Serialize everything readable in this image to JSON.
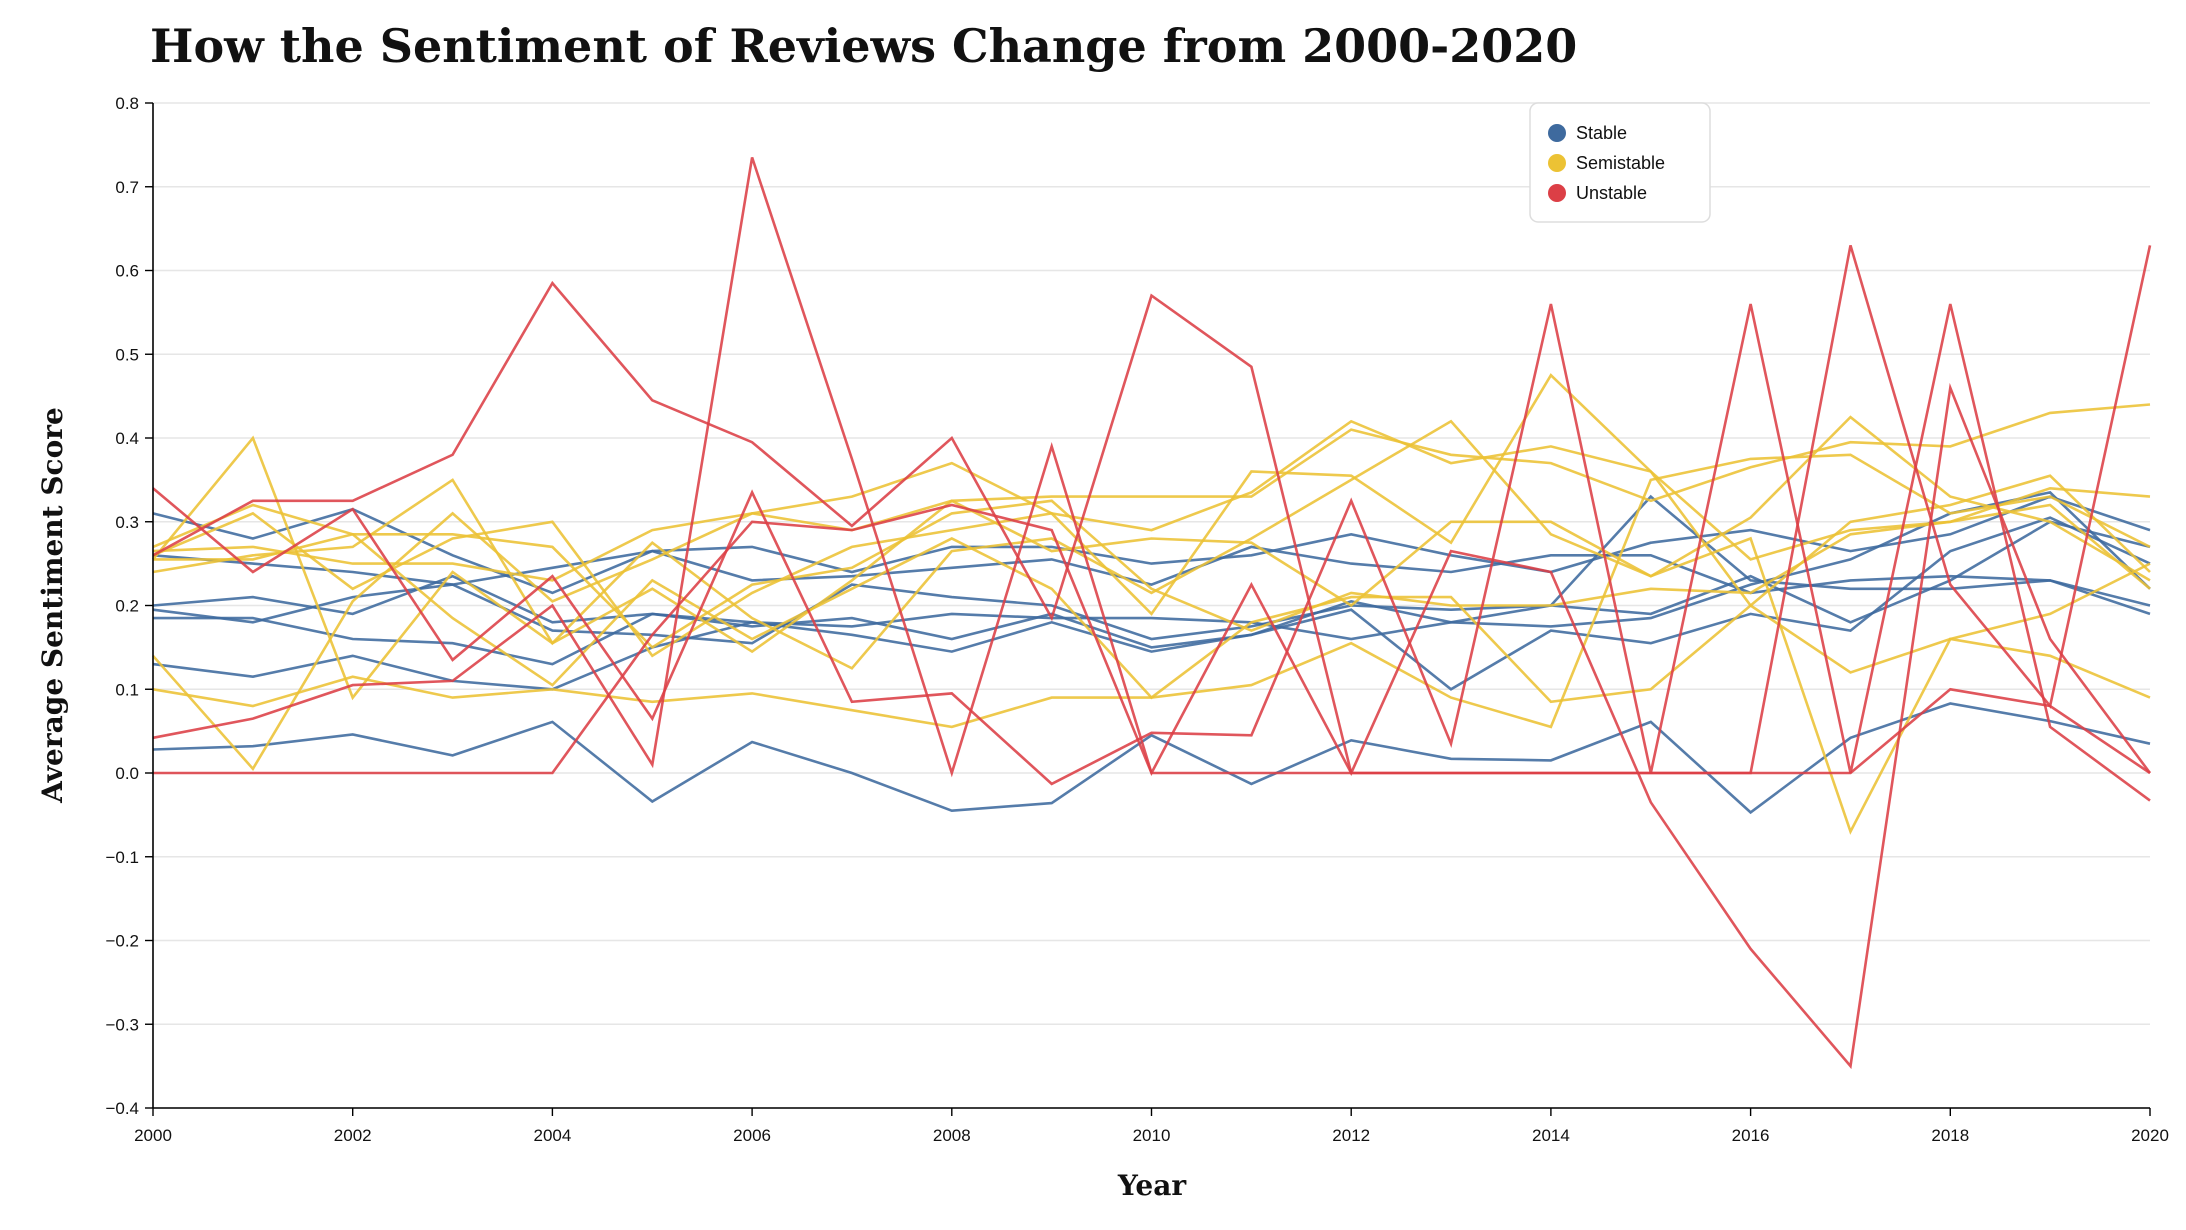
{
  "chart_data": {
    "type": "line",
    "title": "How the Sentiment of Reviews Change from 2000-2020",
    "xlabel": "Year",
    "ylabel": "Average Sentiment Score",
    "xlim": [
      2000,
      2020
    ],
    "ylim": [
      -0.4,
      0.8
    ],
    "x_ticks": [
      "2000",
      "2002",
      "2004",
      "2006",
      "2008",
      "2010",
      "2012",
      "2014",
      "2016",
      "2018",
      "2020"
    ],
    "y_ticks": [
      "0.8",
      "0.7",
      "0.6",
      "0.5",
      "0.4",
      "0.3",
      "0.2",
      "0.1",
      "0.0",
      "−0.1",
      "−0.2",
      "−0.3",
      "−0.4"
    ],
    "grid": "horizontal",
    "legend_position": "top-right",
    "colors": {
      "Stable": "#3e6a9e",
      "Semistable": "#ecc234",
      "Unstable": "#dc3f46"
    },
    "legend": [
      {
        "name": "Stable",
        "color": "#3e6a9e"
      },
      {
        "name": "Semistable",
        "color": "#ecc234"
      },
      {
        "name": "Unstable",
        "color": "#dc3f46"
      }
    ],
    "x": [
      2000,
      2001,
      2002,
      2003,
      2004,
      2005,
      2006,
      2007,
      2008,
      2009,
      2010,
      2011,
      2012,
      2013,
      2014,
      2015,
      2016,
      2017,
      2018,
      2019,
      2020
    ],
    "series": [
      {
        "name": "Stable 1",
        "group": "Stable",
        "values": [
          0.31,
          0.28,
          0.315,
          0.26,
          0.215,
          0.265,
          0.27,
          0.24,
          0.27,
          0.27,
          0.25,
          0.26,
          0.285,
          0.26,
          0.24,
          0.275,
          0.29,
          0.265,
          0.285,
          0.33,
          0.29
        ]
      },
      {
        "name": "Stable 2",
        "group": "Stable",
        "values": [
          0.2,
          0.21,
          0.19,
          0.235,
          0.18,
          0.19,
          0.175,
          0.185,
          0.16,
          0.19,
          0.15,
          0.165,
          0.205,
          0.18,
          0.175,
          0.185,
          0.225,
          0.255,
          0.31,
          0.335,
          0.22
        ]
      },
      {
        "name": "Stable 3",
        "group": "Stable",
        "values": [
          0.26,
          0.25,
          0.24,
          0.225,
          0.245,
          0.265,
          0.23,
          0.235,
          0.245,
          0.255,
          0.225,
          0.27,
          0.25,
          0.24,
          0.26,
          0.26,
          0.215,
          0.23,
          0.235,
          0.23,
          0.2
        ]
      },
      {
        "name": "Stable 4",
        "group": "Stable",
        "values": [
          0.185,
          0.185,
          0.16,
          0.155,
          0.13,
          0.19,
          0.18,
          0.175,
          0.19,
          0.185,
          0.185,
          0.18,
          0.16,
          0.18,
          0.2,
          0.19,
          0.235,
          0.18,
          0.23,
          0.3,
          0.27
        ]
      },
      {
        "name": "Stable 5",
        "group": "Stable",
        "values": [
          0.13,
          0.115,
          0.14,
          0.11,
          0.1,
          0.15,
          0.18,
          0.165,
          0.145,
          0.18,
          0.145,
          0.165,
          0.195,
          0.1,
          0.17,
          0.155,
          0.19,
          0.17,
          0.265,
          0.305,
          0.25
        ]
      },
      {
        "name": "Stable 6",
        "group": "Stable",
        "values": [
          0.195,
          0.18,
          0.21,
          0.225,
          0.17,
          0.165,
          0.155,
          0.225,
          0.21,
          0.2,
          0.16,
          0.175,
          0.2,
          0.195,
          0.2,
          0.33,
          0.23,
          0.22,
          0.22,
          0.23,
          0.19
        ]
      },
      {
        "name": "Stable 7",
        "group": "Stable",
        "values": [
          0.028,
          0.032,
          0.046,
          0.021,
          0.061,
          -0.034,
          0.037,
          0.0,
          -0.045,
          -0.036,
          0.045,
          -0.013,
          0.039,
          0.017,
          0.015,
          0.061,
          -0.047,
          0.042,
          0.083,
          0.062,
          0.035
        ]
      },
      {
        "name": "Semistable 1",
        "group": "Semistable",
        "values": [
          0.265,
          0.27,
          0.25,
          0.25,
          0.23,
          0.29,
          0.31,
          0.33,
          0.37,
          0.31,
          0.29,
          0.335,
          0.42,
          0.37,
          0.39,
          0.36,
          0.255,
          0.29,
          0.3,
          0.34,
          0.33
        ]
      },
      {
        "name": "Semistable 2",
        "group": "Semistable",
        "values": [
          0.24,
          0.26,
          0.27,
          0.35,
          0.155,
          0.275,
          0.185,
          0.125,
          0.265,
          0.28,
          0.215,
          0.28,
          0.35,
          0.42,
          0.285,
          0.235,
          0.305,
          0.425,
          0.33,
          0.3,
          0.23
        ]
      },
      {
        "name": "Semistable 3",
        "group": "Semistable",
        "values": [
          0.255,
          0.4,
          0.09,
          0.24,
          0.155,
          0.22,
          0.145,
          0.23,
          0.325,
          0.33,
          0.33,
          0.33,
          0.41,
          0.38,
          0.37,
          0.325,
          0.365,
          0.395,
          0.39,
          0.43,
          0.44
        ]
      },
      {
        "name": "Semistable 4",
        "group": "Semistable",
        "values": [
          0.14,
          0.005,
          0.205,
          0.31,
          0.205,
          0.255,
          0.31,
          0.29,
          0.325,
          0.265,
          0.28,
          0.275,
          0.2,
          0.3,
          0.3,
          0.235,
          0.28,
          -0.07,
          0.16,
          0.14,
          0.09
        ]
      },
      {
        "name": "Semistable 5",
        "group": "Semistable",
        "values": [
          0.1,
          0.08,
          0.115,
          0.09,
          0.1,
          0.085,
          0.095,
          0.075,
          0.055,
          0.09,
          0.09,
          0.105,
          0.155,
          0.09,
          0.055,
          0.35,
          0.375,
          0.38,
          0.31,
          0.33,
          0.27
        ]
      },
      {
        "name": "Semistable 6",
        "group": "Semistable",
        "values": [
          0.26,
          0.31,
          0.22,
          0.28,
          0.3,
          0.14,
          0.215,
          0.27,
          0.29,
          0.31,
          0.19,
          0.36,
          0.355,
          0.275,
          0.475,
          0.36,
          0.2,
          0.12,
          0.16,
          0.19,
          0.25
        ]
      },
      {
        "name": "Semistable 7",
        "group": "Semistable",
        "values": [
          0.27,
          0.32,
          0.285,
          0.185,
          0.105,
          0.23,
          0.16,
          0.22,
          0.28,
          0.22,
          0.09,
          0.18,
          0.21,
          0.21,
          0.085,
          0.1,
          0.2,
          0.3,
          0.32,
          0.355,
          0.24
        ]
      },
      {
        "name": "Semistable 8",
        "group": "Semistable",
        "values": [
          0.255,
          0.255,
          0.285,
          0.285,
          0.27,
          0.15,
          0.225,
          0.245,
          0.31,
          0.325,
          0.22,
          0.17,
          0.215,
          0.2,
          0.2,
          0.22,
          0.215,
          0.285,
          0.3,
          0.32,
          0.22
        ]
      },
      {
        "name": "Unstable 1",
        "group": "Unstable",
        "values": [
          0.34,
          0.24,
          0.315,
          0.135,
          0.235,
          0.065,
          0.335,
          0.085,
          0.095,
          -0.013,
          0.048,
          0.045,
          0.325,
          0.035,
          0.56,
          0.0,
          0.56,
          0.0,
          0.56,
          0.055,
          -0.033
        ]
      },
      {
        "name": "Unstable 2",
        "group": "Unstable",
        "values": [
          0.26,
          0.325,
          0.325,
          0.38,
          0.585,
          0.445,
          0.395,
          0.295,
          0.4,
          0.185,
          0.57,
          0.485,
          0.0,
          0.0,
          0.0,
          0.0,
          0.0,
          0.0,
          0.1,
          0.08,
          0.0
        ]
      },
      {
        "name": "Unstable 3",
        "group": "Unstable",
        "values": [
          0.042,
          0.065,
          0.105,
          0.11,
          0.2,
          0.01,
          0.735,
          0.375,
          0.0,
          0.39,
          0.0,
          0.0,
          0.0,
          0.0,
          0.0,
          0.0,
          0.0,
          0.63,
          0.225,
          0.08,
          0.63
        ]
      },
      {
        "name": "Unstable 4",
        "group": "Unstable",
        "values": [
          0.0,
          0.0,
          0.0,
          0.0,
          0.0,
          0.165,
          0.3,
          0.29,
          0.32,
          0.29,
          0.0,
          0.225,
          0.0,
          0.265,
          0.24,
          -0.035,
          -0.21,
          -0.35,
          0.46,
          0.16,
          0.0
        ]
      }
    ]
  }
}
